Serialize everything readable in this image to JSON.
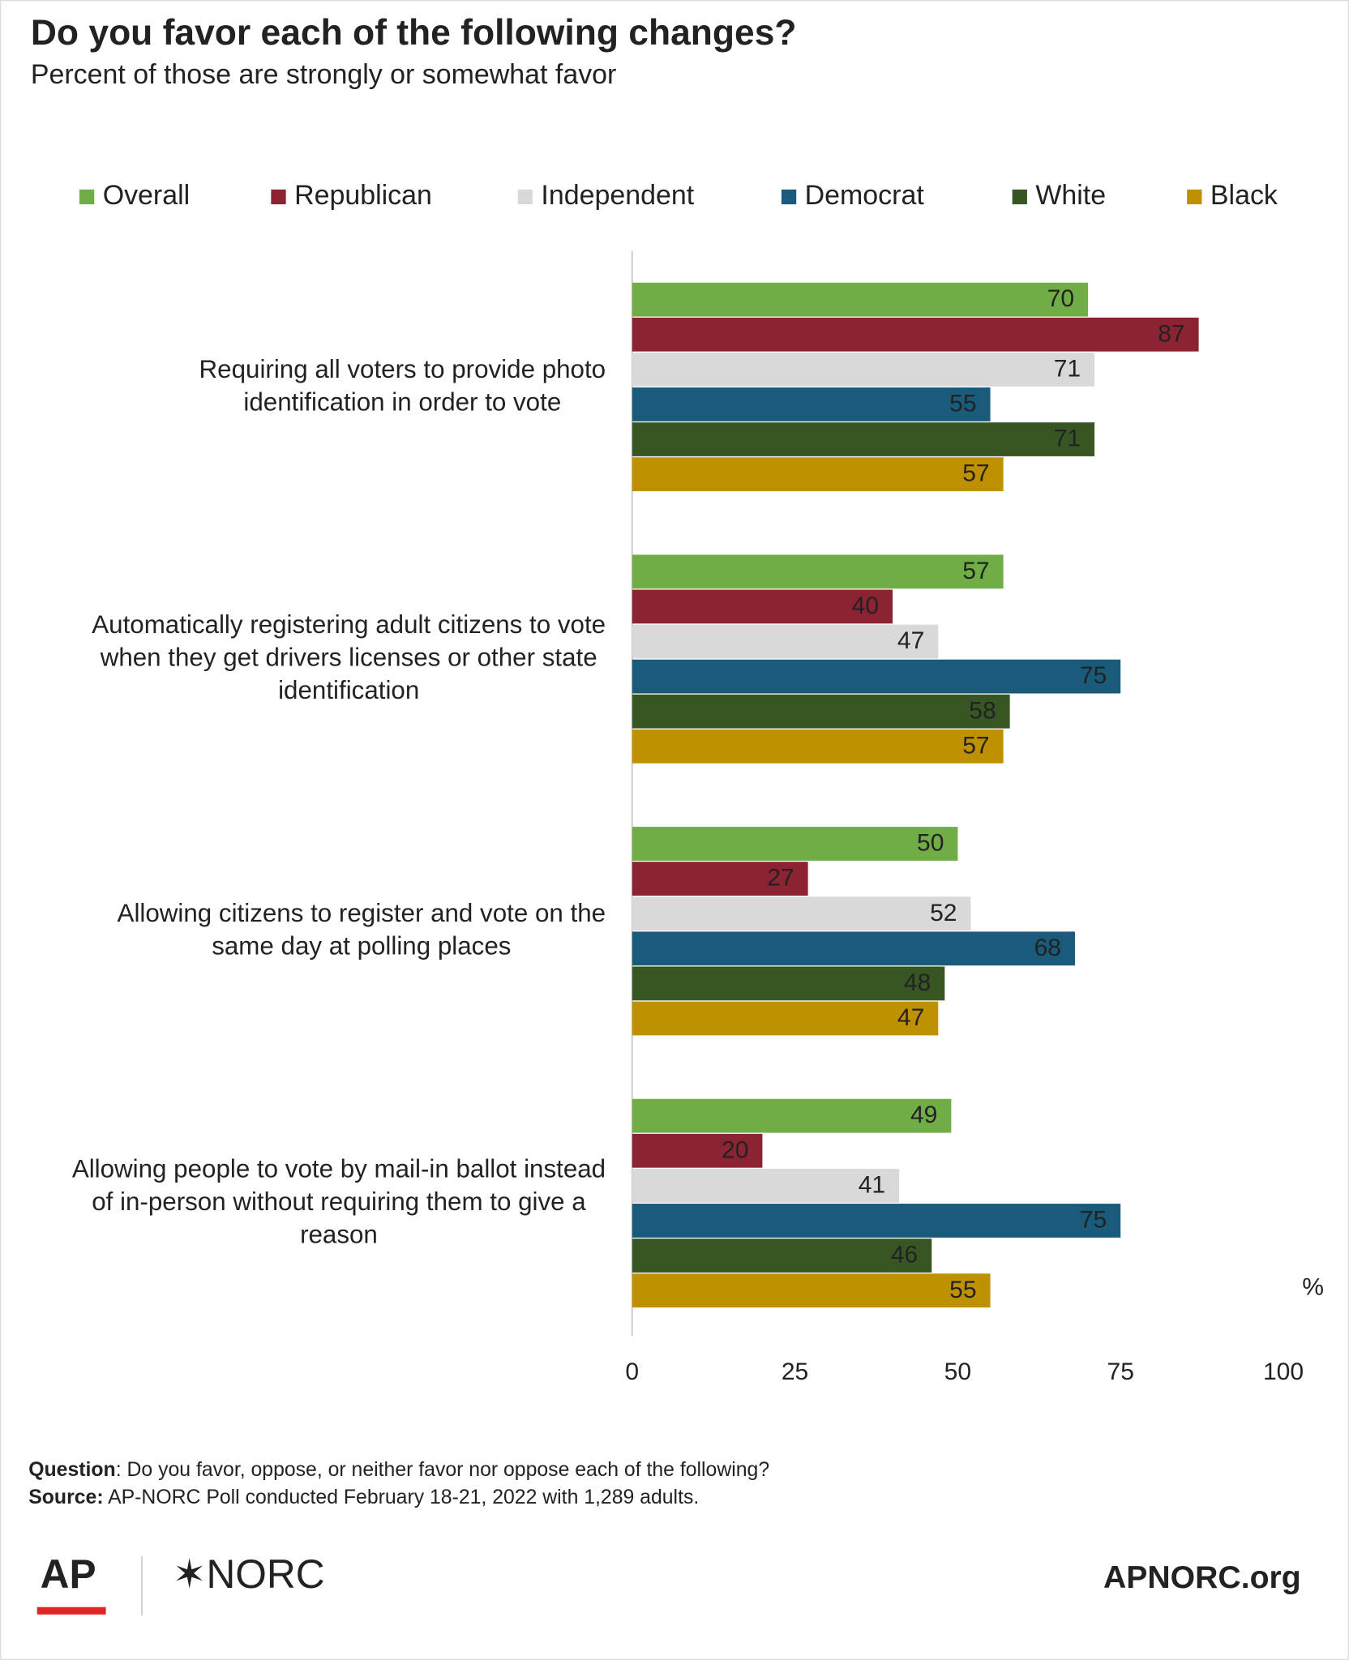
{
  "chart_data": {
    "type": "hbar",
    "title": "Do you favor each of the following changes?",
    "subtitle": "Percent of those are strongly or somewhat favor",
    "x_unit": "%",
    "categories": [
      "Requiring all voters to provide photo identification in order to vote",
      "Automatically registering adult citizens to vote when they get drivers licenses or other state identification",
      "Allowing citizens to register and vote on the same day at polling places",
      "Allowing people to vote by mail-in ballot instead of in-person without requiring them to give a reason"
    ],
    "series": [
      {
        "name": "Overall",
        "color": "#70ad47",
        "label_color": "#ffffff",
        "values": [
          70,
          57,
          50,
          49
        ]
      },
      {
        "name": "Republican",
        "color": "#8b2332",
        "label_color": "#ffffff",
        "values": [
          87,
          40,
          27,
          20
        ]
      },
      {
        "name": "Independent",
        "color": "#d9d9d9",
        "label_color": "#111111",
        "values": [
          71,
          47,
          52,
          41
        ]
      },
      {
        "name": "Democrat",
        "color": "#1a5a7a",
        "label_color": "#ffffff",
        "values": [
          55,
          75,
          68,
          75
        ]
      },
      {
        "name": "White",
        "color": "#375623",
        "label_color": "#ffffff",
        "values": [
          71,
          58,
          48,
          46
        ]
      },
      {
        "name": "Black",
        "color": "#bf9000",
        "label_color": "#ffffff",
        "values": [
          57,
          57,
          47,
          55
        ]
      }
    ],
    "xlim": [
      0,
      100
    ],
    "xticks": [
      0,
      25,
      50,
      75,
      100
    ],
    "legend": "top",
    "footnotes": [
      {
        "label": "Question",
        "text": ": Do you favor, oppose, or neither favor nor oppose each of the following?"
      },
      {
        "label": "Source:",
        "text": " AP-NORC Poll conducted February 18-21, 2022 with 1,289 adults."
      }
    ],
    "logos": [
      "AP",
      "✶NORC",
      "APNORC.org"
    ]
  }
}
